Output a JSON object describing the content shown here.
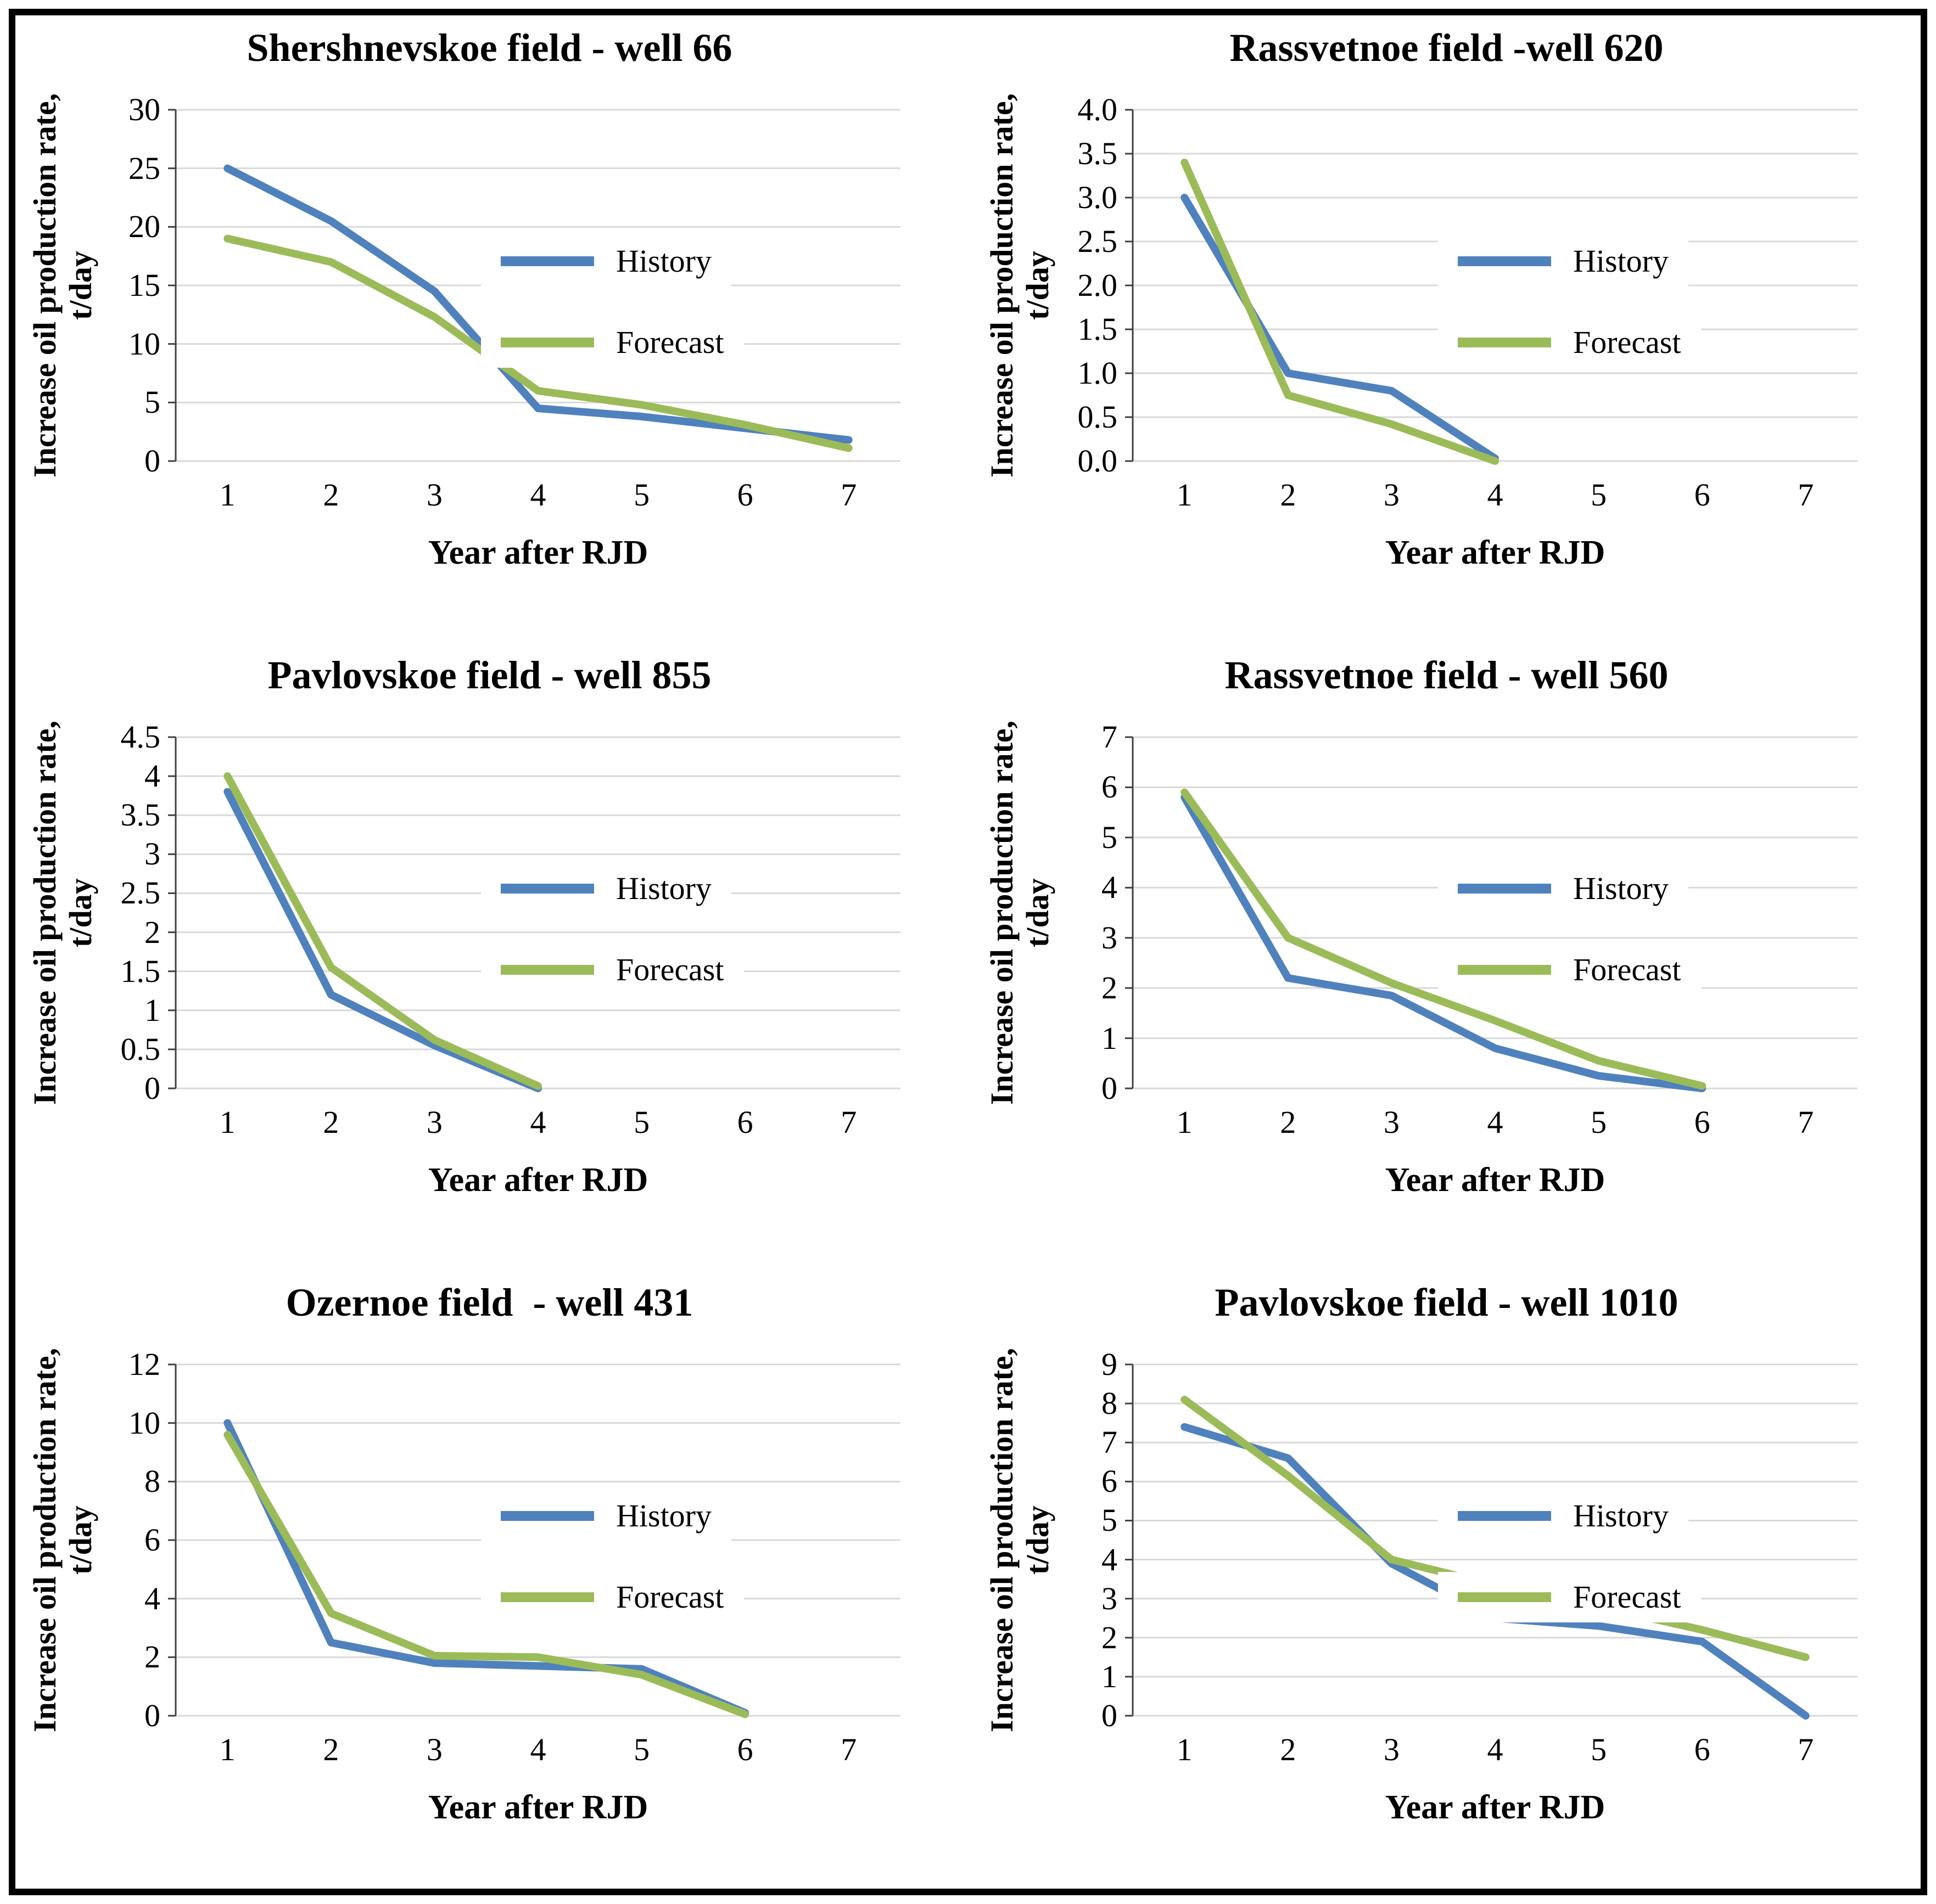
{
  "style": {
    "gridline_color": "#D9D9D9",
    "axis_color": "#404040",
    "history_color": "#4F81BD",
    "forecast_color": "#9BBB59",
    "frame_border_color": "#000000",
    "background_color": "#FFFFFF"
  },
  "chart_data": [
    {
      "type": "line",
      "title": "Shershnevskoe field - well 66",
      "xlabel": "Year after RJD",
      "ylabel": "Increase oil production rate, t/day",
      "ylabel_lines": [
        "Increase oil production rate,",
        "t/day"
      ],
      "x_categories": [
        "1",
        "2",
        "3",
        "4",
        "5",
        "6",
        "7"
      ],
      "ylim": [
        0,
        30
      ],
      "yticks": [
        "30",
        "25",
        "20",
        "15",
        "10",
        "5",
        "0"
      ],
      "grid": true,
      "legend_position": "right-inside",
      "series": [
        {
          "name": "History",
          "color": "#4F81BD",
          "values": [
            25,
            20.5,
            14.5,
            4.5,
            3.8,
            2.8,
            1.8
          ]
        },
        {
          "name": "Forecast",
          "color": "#9BBB59",
          "values": [
            19,
            17,
            12.3,
            6,
            4.8,
            3.1,
            1.1
          ]
        }
      ]
    },
    {
      "type": "line",
      "title": "Rassvetnoe field -well 620",
      "xlabel": "Year after RJD",
      "ylabel": "Increase oil production rate, t/day",
      "ylabel_lines": [
        "Increase oil production rate,",
        "t/day"
      ],
      "x_categories": [
        "1",
        "2",
        "3",
        "4",
        "5",
        "6",
        "7"
      ],
      "ylim": [
        0,
        4
      ],
      "yticks": [
        "4.0",
        "3.5",
        "3.0",
        "2.5",
        "2.0",
        "1.5",
        "1.0",
        "0.5",
        "0.0"
      ],
      "grid": true,
      "legend_position": "right-inside",
      "series": [
        {
          "name": "History",
          "color": "#4F81BD",
          "values": [
            3.0,
            1.0,
            0.8,
            0.03
          ]
        },
        {
          "name": "Forecast",
          "color": "#9BBB59",
          "values": [
            3.4,
            0.75,
            0.42,
            0
          ]
        }
      ]
    },
    {
      "type": "line",
      "title": "Pavlovskoe field - well 855",
      "xlabel": "Year after RJD",
      "ylabel": "Increase oil production rate, t/day",
      "ylabel_lines": [
        "Increase oil production rate,",
        "t/day"
      ],
      "x_categories": [
        "1",
        "2",
        "3",
        "4",
        "5",
        "6",
        "7"
      ],
      "ylim": [
        0,
        4.5
      ],
      "yticks": [
        "4.5",
        "4",
        "3.5",
        "3",
        "2.5",
        "2",
        "1.5",
        "1",
        "0.5",
        "0"
      ],
      "grid": true,
      "legend_position": "right-inside",
      "series": [
        {
          "name": "History",
          "color": "#4F81BD",
          "values": [
            3.8,
            1.2,
            0.55,
            0
          ]
        },
        {
          "name": "Forecast",
          "color": "#9BBB59",
          "values": [
            4.0,
            1.55,
            0.62,
            0.03
          ]
        }
      ]
    },
    {
      "type": "line",
      "title": "Rassvetnoe field - well 560",
      "xlabel": "Year after RJD",
      "ylabel": "Increase oil production rate, t/day",
      "ylabel_lines": [
        "Increase oil production rate,",
        "t/day"
      ],
      "x_categories": [
        "1",
        "2",
        "3",
        "4",
        "5",
        "6",
        "7"
      ],
      "ylim": [
        0,
        7
      ],
      "yticks": [
        "7",
        "6",
        "5",
        "4",
        "3",
        "2",
        "1",
        "0"
      ],
      "grid": true,
      "legend_position": "right-inside",
      "series": [
        {
          "name": "History",
          "color": "#4F81BD",
          "values": [
            5.8,
            2.2,
            1.85,
            0.8,
            0.25,
            0
          ]
        },
        {
          "name": "Forecast",
          "color": "#9BBB59",
          "values": [
            5.9,
            3.0,
            2.1,
            1.35,
            0.55,
            0.05
          ]
        }
      ]
    },
    {
      "type": "line",
      "title": "Ozernoe field  - well 431",
      "xlabel": "Year after RJD",
      "ylabel": "Increase oil production rate, t/day",
      "ylabel_lines": [
        "Increase oil production rate,",
        "t/day"
      ],
      "x_categories": [
        "1",
        "2",
        "3",
        "4",
        "5",
        "6",
        "7"
      ],
      "ylim": [
        0,
        12
      ],
      "yticks": [
        "12",
        "10",
        "8",
        "6",
        "4",
        "2",
        "0"
      ],
      "grid": true,
      "legend_position": "right-inside",
      "series": [
        {
          "name": "History",
          "color": "#4F81BD",
          "values": [
            10,
            2.5,
            1.8,
            1.7,
            1.6,
            0.1
          ]
        },
        {
          "name": "Forecast",
          "color": "#9BBB59",
          "values": [
            9.6,
            3.5,
            2.05,
            2.0,
            1.4,
            0.05
          ]
        }
      ]
    },
    {
      "type": "line",
      "title": "Pavlovskoe field - well 1010",
      "xlabel": "Year after RJD",
      "ylabel": "Increase oil production rate, t/day",
      "ylabel_lines": [
        "Increase oil production rate,",
        "t/day"
      ],
      "x_categories": [
        "1",
        "2",
        "3",
        "4",
        "5",
        "6",
        "7"
      ],
      "ylim": [
        0,
        9
      ],
      "yticks": [
        "9",
        "8",
        "7",
        "6",
        "5",
        "4",
        "3",
        "2",
        "1",
        "0"
      ],
      "grid": true,
      "legend_position": "right-inside",
      "series": [
        {
          "name": "History",
          "color": "#4F81BD",
          "values": [
            7.4,
            6.6,
            3.9,
            2.5,
            2.3,
            1.9,
            0
          ]
        },
        {
          "name": "Forecast",
          "color": "#9BBB59",
          "values": [
            8.1,
            6.15,
            4.0,
            3.35,
            2.8,
            2.2,
            1.5
          ]
        }
      ]
    }
  ]
}
